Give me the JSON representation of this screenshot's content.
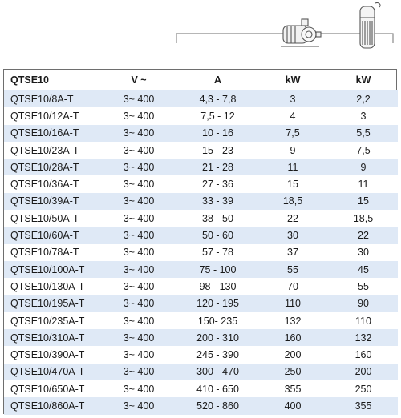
{
  "header": {
    "columns": [
      "QTSE10",
      "V ~",
      "A",
      "kW",
      "kW"
    ],
    "icons": [
      "surface-pump-icon",
      "submersible-pump-icon"
    ]
  },
  "rows": [
    [
      "QTSE10/8A-T",
      "3~ 400",
      "4,3 - 7,8",
      "3",
      "2,2"
    ],
    [
      "QTSE10/12A-T",
      "3~ 400",
      "7,5 - 12",
      "4",
      "3"
    ],
    [
      "QTSE10/16A-T",
      "3~ 400",
      "10 - 16",
      "7,5",
      "5,5"
    ],
    [
      "QTSE10/23A-T",
      "3~ 400",
      "15 - 23",
      "9",
      "7,5"
    ],
    [
      "QTSE10/28A-T",
      "3~ 400",
      "21 - 28",
      "11",
      "9"
    ],
    [
      "QTSE10/36A-T",
      "3~ 400",
      "27 - 36",
      "15",
      "11"
    ],
    [
      "QTSE10/39A-T",
      "3~ 400",
      "33 - 39",
      "18,5",
      "15"
    ],
    [
      "QTSE10/50A-T",
      "3~ 400",
      "38 - 50",
      "22",
      "18,5"
    ],
    [
      "QTSE10/60A-T",
      "3~ 400",
      "50 - 60",
      "30",
      "22"
    ],
    [
      "QTSE10/78A-T",
      "3~ 400",
      "57 - 78",
      "37",
      "30"
    ],
    [
      "QTSE10/100A-T",
      "3~ 400",
      "75 - 100",
      "55",
      "45"
    ],
    [
      "QTSE10/130A-T",
      "3~ 400",
      "98 - 130",
      "70",
      "55"
    ],
    [
      "QTSE10/195A-T",
      "3~ 400",
      "120 - 195",
      "110",
      "90"
    ],
    [
      "QTSE10/235A-T",
      "3~ 400",
      "150- 235",
      "132",
      "110"
    ],
    [
      "QTSE10/310A-T",
      "3~ 400",
      "200 - 310",
      "160",
      "132"
    ],
    [
      "QTSE10/390A-T",
      "3~ 400",
      "245 - 390",
      "200",
      "160"
    ],
    [
      "QTSE10/470A-T",
      "3~ 400",
      "300 - 470",
      "250",
      "200"
    ],
    [
      "QTSE10/650A-T",
      "3~ 400",
      "410 - 650",
      "355",
      "250"
    ],
    [
      "QTSE10/860A-T",
      "3~ 400",
      "520 - 860",
      "400",
      "355"
    ]
  ],
  "colors": {
    "stripe": "#dfe9f6",
    "border": "#6e6e6e"
  }
}
